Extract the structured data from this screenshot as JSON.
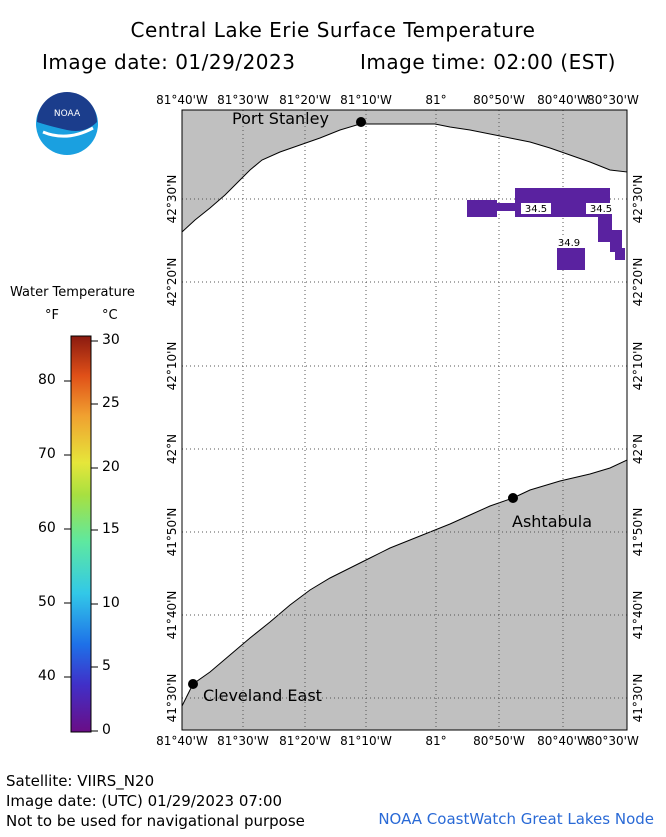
{
  "title": "Central Lake Erie Surface Temperature",
  "image_date": "Image date: 01/29/2023",
  "image_time": "Image time: 02:00 (EST)",
  "logo": {
    "text": "NOAA",
    "icon": "noaa-logo-icon"
  },
  "legend": {
    "title": "Water Temperature",
    "unit_f": "°F",
    "unit_c": "°C",
    "f_ticks": [
      "80",
      "70",
      "60",
      "50",
      "40"
    ],
    "c_ticks": [
      "30",
      "25",
      "20",
      "15",
      "10",
      "5",
      "0"
    ],
    "colors": [
      "#6a0d86",
      "#1e3bd6",
      "#2aa8e8",
      "#5ee8c8",
      "#7ad84a",
      "#e6e63a",
      "#f0b030",
      "#ee7a18",
      "#d8401a",
      "#8a1a10"
    ]
  },
  "map": {
    "top_lon_labels": [
      "81°40'W",
      "81°30'W",
      "81°20'W",
      "81°10'W",
      "81°",
      "80°50'W",
      "80°40'W",
      "80°30'W"
    ],
    "bottom_lon_labels": [
      "81°40'W",
      "81°30'W",
      "81°20'W",
      "81°10'W",
      "81°",
      "80°50'W",
      "80°40'W",
      "80°30'W"
    ],
    "left_lat_labels": [
      "42°30'N",
      "42°20'N",
      "42°10'N",
      "42°N",
      "41°50'N",
      "41°40'N",
      "41°30'N"
    ],
    "right_lat_labels": [
      "42°30'N",
      "42°20'N",
      "42°10'N",
      "42°N",
      "41°50'N",
      "41°40'N",
      "41°30'N"
    ],
    "cities": [
      "Port Stanley",
      "Ashtabula",
      "Cleveland East"
    ],
    "temperature_labels": [
      "34.5",
      "34.5",
      "34.9"
    ],
    "land_color": "#c0c0c0",
    "water_color": "#ffffff",
    "pixel_color": "#5a22a0"
  },
  "footer": {
    "satellite": "Satellite: VIIRS_N20",
    "utc_date": "Image date: (UTC) 01/29/2023  07:00",
    "disclaimer": "Not to be used for navigational purpose",
    "credit": "NOAA CoastWatch Great Lakes Node"
  }
}
